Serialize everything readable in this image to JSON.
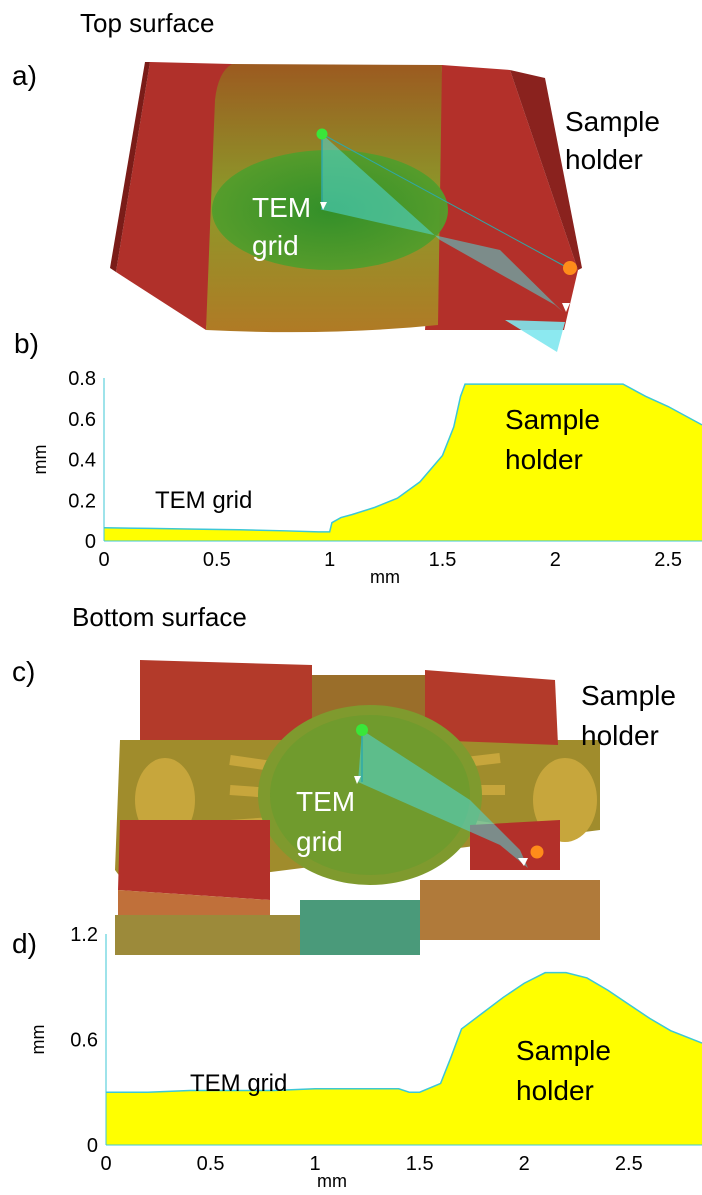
{
  "colors": {
    "holder_red": "#b3302a",
    "holder_red_dark": "#8f2420",
    "surface_olive": "#a9902a",
    "grid_green": "#3f9a2e",
    "path_cyan": "#4fd8d8",
    "profile_fill": "#ffff00",
    "profile_line": "#3cc7d6",
    "start_marker": "#39e639",
    "end_marker": "#ff8c1a"
  },
  "icons": {
    "start_marker": "green-dot",
    "end_marker": "orange-dot"
  },
  "panel_a": {
    "heading": "Top surface",
    "letter": "a)",
    "holder_label_1": "Sample",
    "holder_label_2": "holder",
    "grid_label_1": "TEM",
    "grid_label_2": "grid"
  },
  "panel_c": {
    "heading": "Bottom surface",
    "letter": "c)",
    "holder_label_1": "Sample",
    "holder_label_2": "holder",
    "grid_label_1": "TEM",
    "grid_label_2": "grid"
  },
  "chart_data": [
    {
      "panel": "b)",
      "type": "area",
      "xlabel": "mm",
      "ylabel": "mm",
      "xlim": [
        0,
        2.65
      ],
      "ylim": [
        0,
        0.8
      ],
      "xticks": [
        "0",
        "0.5",
        "1",
        "1.5",
        "2",
        "2.5"
      ],
      "xtick_values": [
        0,
        0.5,
        1,
        1.5,
        2,
        2.5
      ],
      "yticks": [
        "0",
        "0.2",
        "0.4",
        "0.6",
        "0.8"
      ],
      "ytick_values": [
        0,
        0.2,
        0.4,
        0.6,
        0.8
      ],
      "annotations": [
        "TEM grid",
        "Sample",
        "holder"
      ],
      "grid": false,
      "series": [
        {
          "x": [
            0,
            0.2,
            0.4,
            0.6,
            0.8,
            0.95,
            1.0,
            1.01,
            1.05,
            1.1,
            1.2,
            1.3,
            1.4,
            1.5,
            1.55,
            1.58,
            1.6,
            1.7,
            1.8,
            2.0,
            2.2,
            2.3,
            2.4,
            2.5,
            2.65
          ],
          "values": [
            0.065,
            0.062,
            0.058,
            0.055,
            0.05,
            0.045,
            0.045,
            0.09,
            0.115,
            0.13,
            0.165,
            0.21,
            0.29,
            0.42,
            0.56,
            0.71,
            0.77,
            0.77,
            0.77,
            0.77,
            0.77,
            0.77,
            0.71,
            0.66,
            0.57
          ]
        }
      ]
    },
    {
      "panel": "d)",
      "type": "area",
      "xlabel": "mm",
      "ylabel": "mm",
      "xlim": [
        0,
        2.85
      ],
      "ylim": [
        0,
        1.2
      ],
      "xticks": [
        "0",
        "0.5",
        "1",
        "1.5",
        "2",
        "2.5"
      ],
      "xtick_values": [
        0,
        0.5,
        1,
        1.5,
        2,
        2.5
      ],
      "yticks": [
        "0",
        "0.6",
        "1.2"
      ],
      "ytick_values": [
        0,
        0.6,
        1.2
      ],
      "annotations": [
        "TEM grid",
        "Sample",
        "holder"
      ],
      "grid": false,
      "series": [
        {
          "x": [
            0,
            0.2,
            0.4,
            0.6,
            0.8,
            1.0,
            1.2,
            1.4,
            1.45,
            1.5,
            1.6,
            1.65,
            1.7,
            1.8,
            1.9,
            2.0,
            2.1,
            2.2,
            2.3,
            2.4,
            2.5,
            2.6,
            2.7,
            2.85
          ],
          "values": [
            0.3,
            0.3,
            0.31,
            0.31,
            0.31,
            0.32,
            0.32,
            0.32,
            0.3,
            0.3,
            0.35,
            0.5,
            0.66,
            0.75,
            0.84,
            0.92,
            0.98,
            0.98,
            0.95,
            0.88,
            0.8,
            0.72,
            0.65,
            0.58
          ]
        }
      ]
    }
  ]
}
